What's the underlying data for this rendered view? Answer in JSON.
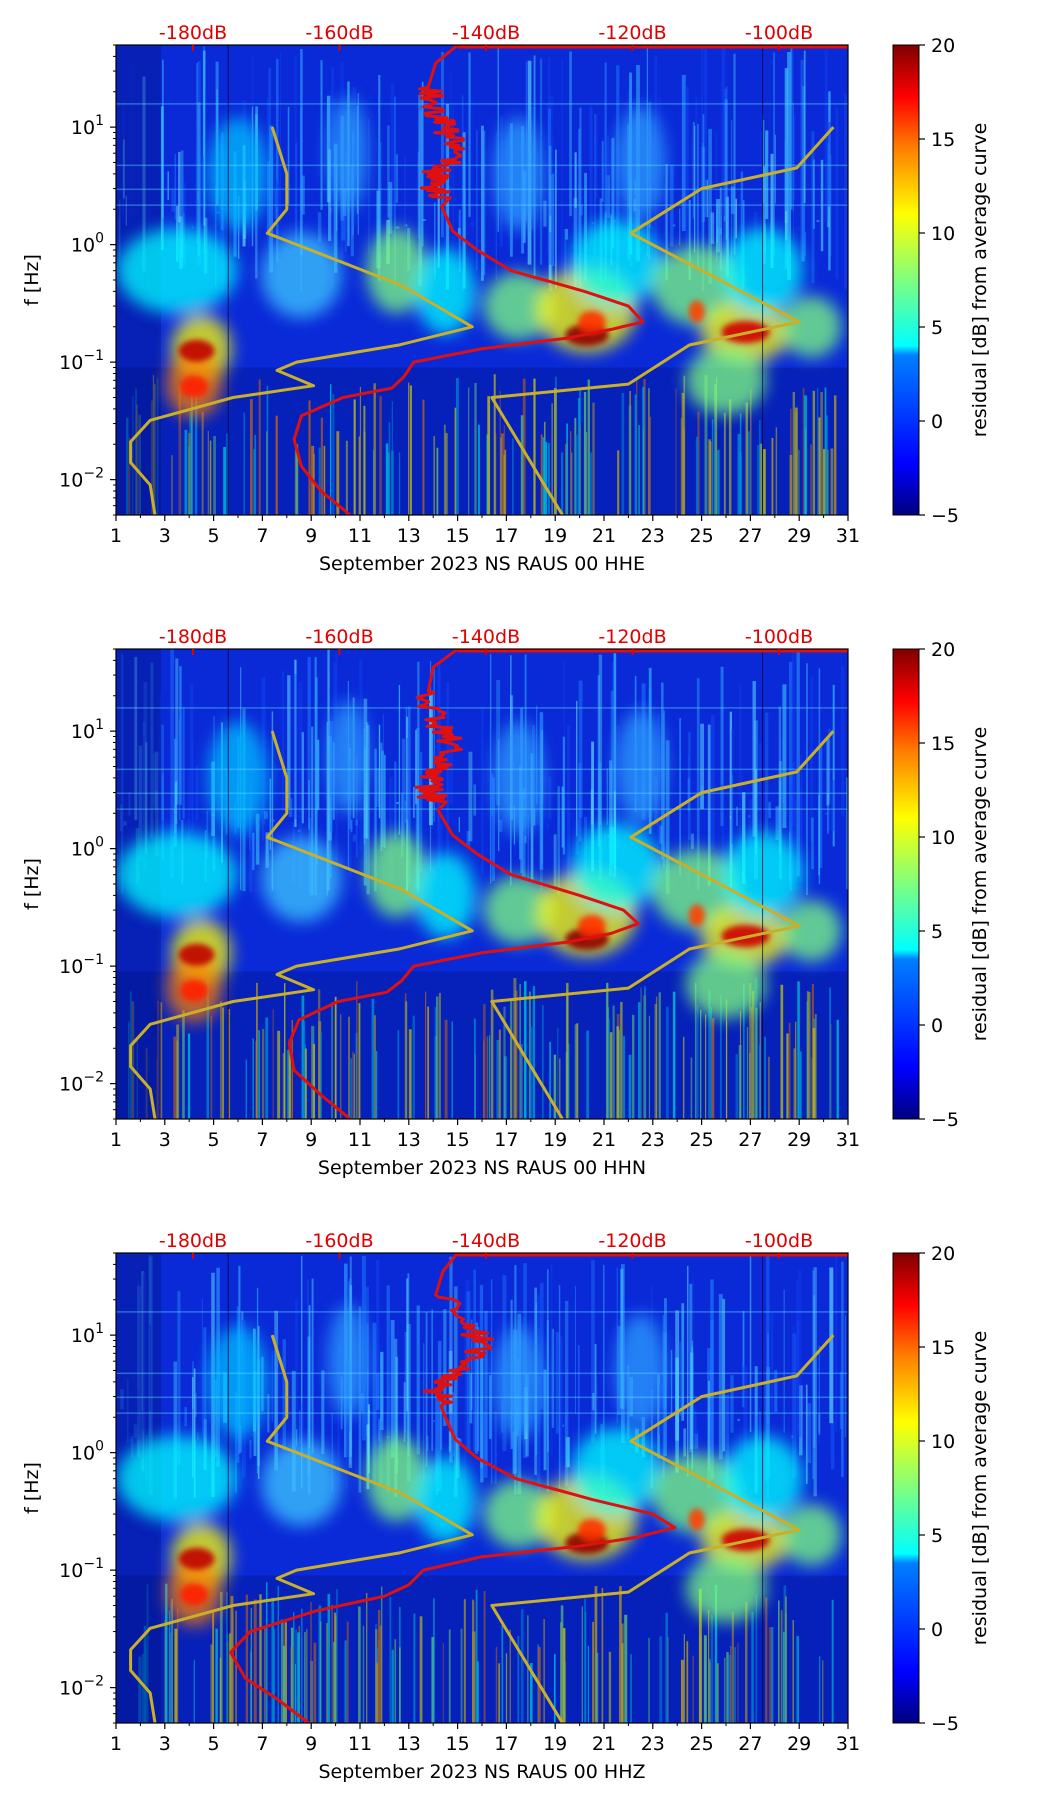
{
  "chart_data": [
    {
      "type": "heatmap",
      "panel": "HHE",
      "xlabel": "September 2023 NS RAUS 00 HHE",
      "ylabel": "f [Hz]",
      "colorbar_label": "residual [dB] from average curve",
      "xlim": [
        1,
        31
      ],
      "ylim_hz": [
        0.005,
        50
      ],
      "x_ticks": [
        "1",
        "3",
        "5",
        "7",
        "9",
        "11",
        "13",
        "15",
        "17",
        "19",
        "21",
        "23",
        "25",
        "27",
        "29",
        "31"
      ],
      "y_ticks": [
        {
          "exp": "-2"
        },
        {
          "exp": "-1"
        },
        {
          "exp": "0"
        },
        {
          "exp": "1"
        }
      ],
      "db_ticks": [
        "-180dB",
        "-160dB",
        "-140dB",
        "-120dB",
        "-100dB"
      ],
      "colorbar_ticks": [
        "20",
        "15",
        "10",
        "5",
        "0",
        "−5"
      ],
      "colorbar_range": [
        -5,
        20
      ],
      "mean_psd_curve": [
        [
          10.6,
          0.005
        ],
        [
          9.4,
          0.008
        ],
        [
          8.6,
          0.013
        ],
        [
          8.3,
          0.022
        ],
        [
          8.6,
          0.035
        ],
        [
          10.3,
          0.05
        ],
        [
          12.3,
          0.06
        ],
        [
          12.8,
          0.075
        ],
        [
          13.2,
          0.1
        ],
        [
          16,
          0.13
        ],
        [
          19.5,
          0.16
        ],
        [
          21.3,
          0.19
        ],
        [
          22.6,
          0.22
        ],
        [
          22,
          0.3
        ],
        [
          20.2,
          0.4
        ],
        [
          17.2,
          0.6
        ],
        [
          15.8,
          0.9
        ],
        [
          14.8,
          1.3
        ],
        [
          14.2,
          2.5
        ],
        [
          13.9,
          3.5
        ],
        [
          14.5,
          5
        ],
        [
          14.8,
          8
        ],
        [
          14.2,
          12
        ],
        [
          13.8,
          22
        ],
        [
          14.1,
          35
        ],
        [
          15,
          50
        ]
      ],
      "noise_model_curve": [
        [
          2.6,
          0.005
        ],
        [
          2.4,
          0.009
        ],
        [
          1.6,
          0.014
        ],
        [
          1.6,
          0.021
        ],
        [
          2.4,
          0.032
        ],
        [
          5.8,
          0.05
        ],
        [
          9.1,
          0.063
        ],
        [
          7.6,
          0.085
        ],
        [
          8.4,
          0.1
        ],
        [
          12.6,
          0.14
        ],
        [
          15.6,
          0.2
        ],
        [
          12.7,
          0.45
        ],
        [
          7.2,
          1.25
        ],
        [
          8,
          2
        ],
        [
          8,
          4
        ],
        [
          7.4,
          10
        ],
        [
          null,
          null
        ],
        [
          19.3,
          0.005
        ],
        [
          16.4,
          0.05
        ],
        [
          22,
          0.065
        ],
        [
          24.5,
          0.14
        ],
        [
          29,
          0.22
        ],
        [
          22.1,
          1.25
        ],
        [
          25,
          3
        ],
        [
          28.9,
          4.5
        ],
        [
          30.4,
          10
        ]
      ]
    },
    {
      "type": "heatmap",
      "panel": "HHN",
      "xlabel": "September 2023 NS RAUS 00 HHN",
      "ylabel": "f [Hz]",
      "colorbar_label": "residual [dB] from average curve",
      "xlim": [
        1,
        31
      ],
      "ylim_hz": [
        0.005,
        50
      ],
      "x_ticks": [
        "1",
        "3",
        "5",
        "7",
        "9",
        "11",
        "13",
        "15",
        "17",
        "19",
        "21",
        "23",
        "25",
        "27",
        "29",
        "31"
      ],
      "y_ticks": [
        {
          "exp": "-2"
        },
        {
          "exp": "-1"
        },
        {
          "exp": "0"
        },
        {
          "exp": "1"
        }
      ],
      "db_ticks": [
        "-180dB",
        "-160dB",
        "-140dB",
        "-120dB",
        "-100dB"
      ],
      "colorbar_ticks": [
        "20",
        "15",
        "10",
        "5",
        "0",
        "−5"
      ],
      "colorbar_range": [
        -5,
        20
      ],
      "mean_psd_curve": [
        [
          10.6,
          0.005
        ],
        [
          9.4,
          0.008
        ],
        [
          8.3,
          0.013
        ],
        [
          8.1,
          0.022
        ],
        [
          8.5,
          0.035
        ],
        [
          10.1,
          0.05
        ],
        [
          12.1,
          0.06
        ],
        [
          12.7,
          0.075
        ],
        [
          13.2,
          0.1
        ],
        [
          16,
          0.13
        ],
        [
          19.5,
          0.16
        ],
        [
          21.3,
          0.19
        ],
        [
          22.4,
          0.23
        ],
        [
          21.8,
          0.3
        ],
        [
          20,
          0.4
        ],
        [
          17.2,
          0.6
        ],
        [
          15.8,
          0.9
        ],
        [
          14.8,
          1.3
        ],
        [
          14,
          2.5
        ],
        [
          13.8,
          3.5
        ],
        [
          14.4,
          5
        ],
        [
          14.7,
          8
        ],
        [
          14.2,
          12
        ],
        [
          13.8,
          22
        ],
        [
          14,
          35
        ],
        [
          15,
          50
        ]
      ],
      "noise_model_curve": [
        [
          2.6,
          0.005
        ],
        [
          2.4,
          0.009
        ],
        [
          1.6,
          0.014
        ],
        [
          1.6,
          0.021
        ],
        [
          2.4,
          0.032
        ],
        [
          5.8,
          0.05
        ],
        [
          9.1,
          0.063
        ],
        [
          7.6,
          0.085
        ],
        [
          8.4,
          0.1
        ],
        [
          12.6,
          0.14
        ],
        [
          15.6,
          0.2
        ],
        [
          12.7,
          0.45
        ],
        [
          7.2,
          1.25
        ],
        [
          8,
          2
        ],
        [
          8,
          4
        ],
        [
          7.4,
          10
        ],
        [
          null,
          null
        ],
        [
          19.3,
          0.005
        ],
        [
          16.4,
          0.05
        ],
        [
          22,
          0.065
        ],
        [
          24.5,
          0.14
        ],
        [
          29,
          0.22
        ],
        [
          22.1,
          1.25
        ],
        [
          25,
          3
        ],
        [
          28.9,
          4.5
        ],
        [
          30.4,
          10
        ]
      ]
    },
    {
      "type": "heatmap",
      "panel": "HHZ",
      "xlabel": "September 2023 NS RAUS 00 HHZ",
      "ylabel": "f [Hz]",
      "colorbar_label": "residual [dB] from average curve",
      "xlim": [
        1,
        31
      ],
      "ylim_hz": [
        0.005,
        50
      ],
      "x_ticks": [
        "1",
        "3",
        "5",
        "7",
        "9",
        "11",
        "13",
        "15",
        "17",
        "19",
        "21",
        "23",
        "25",
        "27",
        "29",
        "31"
      ],
      "y_ticks": [
        {
          "exp": "-2"
        },
        {
          "exp": "-1"
        },
        {
          "exp": "0"
        },
        {
          "exp": "1"
        }
      ],
      "db_ticks": [
        "-180dB",
        "-160dB",
        "-140dB",
        "-120dB",
        "-100dB"
      ],
      "colorbar_ticks": [
        "20",
        "15",
        "10",
        "5",
        "0",
        "−5"
      ],
      "colorbar_range": [
        -5,
        20
      ],
      "mean_psd_curve": [
        [
          8.9,
          0.005
        ],
        [
          7.6,
          0.008
        ],
        [
          6.3,
          0.012
        ],
        [
          5.7,
          0.02
        ],
        [
          6.5,
          0.03
        ],
        [
          9.2,
          0.045
        ],
        [
          12,
          0.06
        ],
        [
          13,
          0.075
        ],
        [
          13.6,
          0.1
        ],
        [
          16,
          0.13
        ],
        [
          20,
          0.16
        ],
        [
          22.3,
          0.19
        ],
        [
          23.9,
          0.23
        ],
        [
          23,
          0.3
        ],
        [
          20.5,
          0.4
        ],
        [
          17.4,
          0.6
        ],
        [
          15.8,
          0.9
        ],
        [
          14.9,
          1.3
        ],
        [
          14.3,
          2.5
        ],
        [
          14.2,
          3.5
        ],
        [
          15,
          5
        ],
        [
          16.1,
          8
        ],
        [
          15.5,
          12
        ],
        [
          14.1,
          22
        ],
        [
          14.4,
          35
        ],
        [
          15,
          50
        ]
      ],
      "noise_model_curve": [
        [
          2.6,
          0.005
        ],
        [
          2.4,
          0.009
        ],
        [
          1.6,
          0.014
        ],
        [
          1.6,
          0.021
        ],
        [
          2.4,
          0.032
        ],
        [
          5.8,
          0.05
        ],
        [
          9.1,
          0.063
        ],
        [
          7.6,
          0.085
        ],
        [
          8.4,
          0.1
        ],
        [
          12.6,
          0.14
        ],
        [
          15.6,
          0.2
        ],
        [
          12.7,
          0.45
        ],
        [
          7.2,
          1.25
        ],
        [
          8,
          2
        ],
        [
          8,
          4
        ],
        [
          7.4,
          10
        ],
        [
          null,
          null
        ],
        [
          19.3,
          0.005
        ],
        [
          16.4,
          0.05
        ],
        [
          22,
          0.065
        ],
        [
          24.5,
          0.14
        ],
        [
          29,
          0.22
        ],
        [
          22.1,
          1.25
        ],
        [
          25,
          3
        ],
        [
          28.9,
          4.5
        ],
        [
          30.4,
          10
        ]
      ]
    }
  ],
  "colors": {
    "mean_psd_curve": "#e01010",
    "noise_model_curve": "#c8b02a",
    "db_axis_text": "#e00000",
    "colormap": [
      "#00007f",
      "#0000ff",
      "#007fff",
      "#00ffff",
      "#7fff7f",
      "#ffff00",
      "#ff7f00",
      "#ff0000",
      "#7f0000"
    ]
  }
}
